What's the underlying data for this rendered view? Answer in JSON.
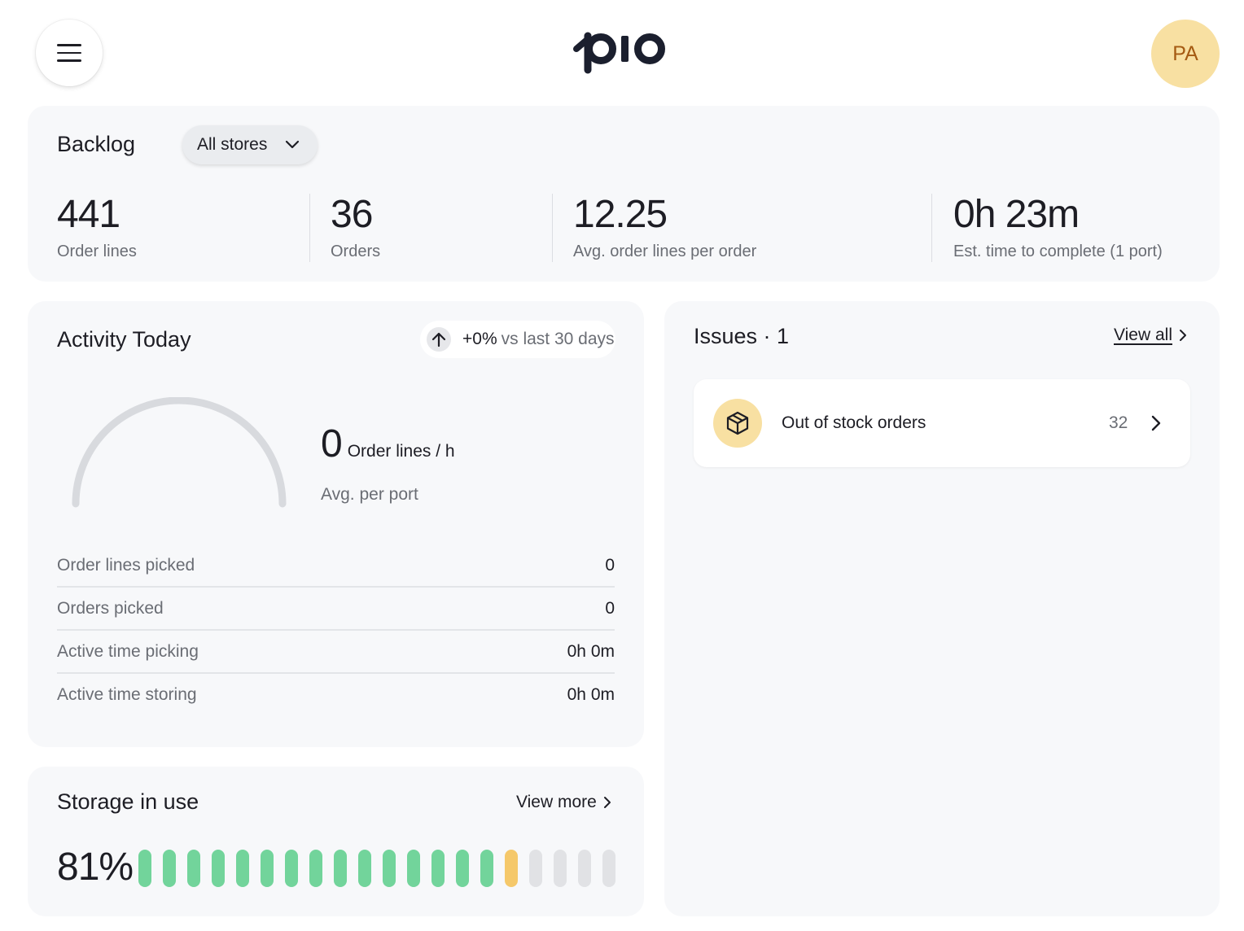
{
  "header": {
    "logo_text": "pio",
    "avatar_initials": "PA"
  },
  "backlog": {
    "title": "Backlog",
    "store_filter": "All stores",
    "metrics": [
      {
        "value": "441",
        "label": "Order lines"
      },
      {
        "value": "36",
        "label": "Orders"
      },
      {
        "value": "12.25",
        "label": "Avg. order lines per order"
      },
      {
        "value": "0h 23m",
        "label": "Est. time to complete (1 port)"
      }
    ]
  },
  "activity": {
    "title": "Activity Today",
    "trend_value": "+0%",
    "trend_suffix": "vs last 30 days",
    "rate_value": "0",
    "rate_unit": "Order lines / h",
    "rate_sub": "Avg. per port",
    "gauge_fraction": 0,
    "stats": [
      {
        "label": "Order lines picked",
        "value": "0"
      },
      {
        "label": "Orders picked",
        "value": "0"
      },
      {
        "label": "Active time picking",
        "value": "0h 0m"
      },
      {
        "label": "Active time storing",
        "value": "0h 0m"
      }
    ]
  },
  "storage": {
    "title": "Storage in use",
    "view_more": "View more",
    "percent": "81%",
    "bars_total": 20,
    "bars_green": 15,
    "bars_amber": 1,
    "colors": {
      "green": "#72d49b",
      "amber": "#f5c86a",
      "empty": "#e1e2e5"
    }
  },
  "issues": {
    "title": "Issues · 1",
    "view_all": "View all",
    "items": [
      {
        "label": "Out of stock orders",
        "count": "32",
        "icon": "box-icon"
      }
    ]
  }
}
